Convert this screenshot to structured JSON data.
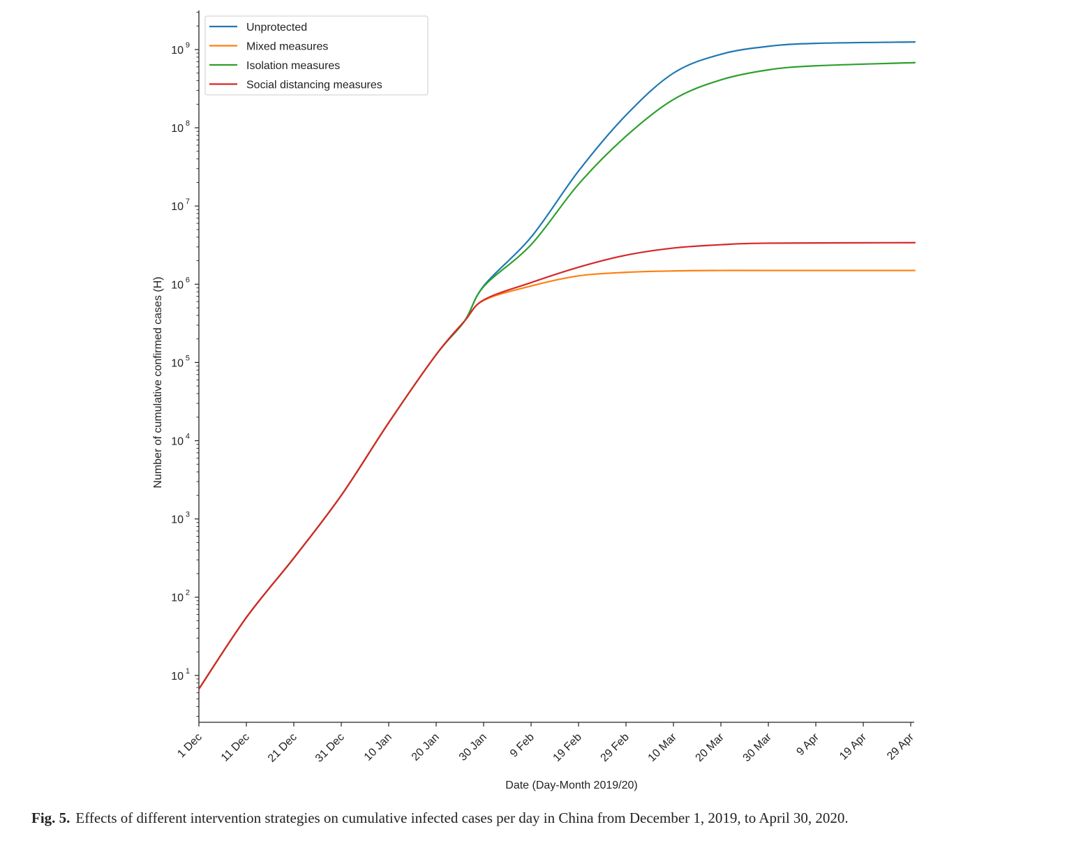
{
  "chart_data": {
    "type": "line",
    "title": "",
    "xlabel": "Date (Day-Month 2019/20)",
    "ylabel": "Number of cumulative confirmed cases (H)",
    "yscale": "log",
    "ylim": [
      2.5,
      3200000000.0
    ],
    "xlim": [
      "2019-12-01",
      "2020-04-30"
    ],
    "x_ticks": [
      "1 Dec",
      "11 Dec",
      "21 Dec",
      "31 Dec",
      "10 Jan",
      "20 Jan",
      "30 Jan",
      "9 Feb",
      "19 Feb",
      "29 Feb",
      "10 Mar",
      "20 Mar",
      "30 Mar",
      "9 Apr",
      "19 Apr",
      "29 Apr"
    ],
    "x_tick_dates": [
      "2019-12-01",
      "2019-12-11",
      "2019-12-21",
      "2019-12-31",
      "2020-01-10",
      "2020-01-20",
      "2020-01-30",
      "2020-02-09",
      "2020-02-19",
      "2020-02-29",
      "2020-03-10",
      "2020-03-20",
      "2020-03-30",
      "2020-04-09",
      "2020-04-19",
      "2020-04-29"
    ],
    "y_ticks": [
      {
        "base": "10",
        "exp": "1",
        "value": 10
      },
      {
        "base": "10",
        "exp": "2",
        "value": 100
      },
      {
        "base": "10",
        "exp": "3",
        "value": 1000
      },
      {
        "base": "10",
        "exp": "4",
        "value": 10000
      },
      {
        "base": "10",
        "exp": "5",
        "value": 100000
      },
      {
        "base": "10",
        "exp": "6",
        "value": 1000000
      },
      {
        "base": "10",
        "exp": "7",
        "value": 10000000
      },
      {
        "base": "10",
        "exp": "8",
        "value": 100000000
      },
      {
        "base": "10",
        "exp": "9",
        "value": 1000000000
      }
    ],
    "grid": false,
    "legend": "top-left",
    "series": [
      {
        "name": "Unprotected",
        "color": "#1f77b4",
        "x": [
          "2019-12-01",
          "2019-12-11",
          "2019-12-21",
          "2019-12-31",
          "2020-01-10",
          "2020-01-20",
          "2020-01-26",
          "2020-01-30",
          "2020-02-09",
          "2020-02-19",
          "2020-02-29",
          "2020-03-10",
          "2020-03-20",
          "2020-03-30",
          "2020-04-09",
          "2020-04-30"
        ],
        "y": [
          6.7,
          55,
          316,
          2000,
          17000,
          126000,
          340000,
          950000,
          4000000,
          28000000,
          145000000,
          500000000,
          870000000,
          1100000000,
          1200000000,
          1250000000
        ]
      },
      {
        "name": "Mixed measures",
        "color": "#ff7f0e",
        "x": [
          "2019-12-01",
          "2019-12-11",
          "2019-12-21",
          "2019-12-31",
          "2020-01-10",
          "2020-01-20",
          "2020-01-26",
          "2020-01-30",
          "2020-02-09",
          "2020-02-19",
          "2020-02-29",
          "2020-03-10",
          "2020-03-20",
          "2020-03-30",
          "2020-04-30"
        ],
        "y": [
          6.7,
          55,
          316,
          2000,
          17000,
          126000,
          340000,
          620000,
          950000,
          1280000,
          1420000,
          1480000,
          1500000,
          1500000,
          1500000
        ]
      },
      {
        "name": "Isolation measures",
        "color": "#2ca02c",
        "x": [
          "2019-12-01",
          "2019-12-11",
          "2019-12-21",
          "2019-12-31",
          "2020-01-10",
          "2020-01-20",
          "2020-01-26",
          "2020-01-30",
          "2020-02-09",
          "2020-02-19",
          "2020-02-29",
          "2020-03-10",
          "2020-03-20",
          "2020-03-30",
          "2020-04-09",
          "2020-04-30"
        ],
        "y": [
          6.7,
          55,
          316,
          2000,
          17000,
          126000,
          340000,
          930000,
          3200000,
          19000000,
          78000000,
          230000000,
          410000000,
          550000000,
          620000000,
          680000000
        ]
      },
      {
        "name": "Social distancing measures",
        "color": "#d62728",
        "x": [
          "2019-12-01",
          "2019-12-11",
          "2019-12-21",
          "2019-12-31",
          "2020-01-10",
          "2020-01-20",
          "2020-01-26",
          "2020-01-30",
          "2020-02-09",
          "2020-02-19",
          "2020-02-29",
          "2020-03-10",
          "2020-03-20",
          "2020-03-30",
          "2020-04-30"
        ],
        "y": [
          6.7,
          55,
          316,
          2000,
          17000,
          126000,
          340000,
          630000,
          1050000,
          1650000,
          2350000,
          2900000,
          3200000,
          3350000,
          3400000
        ]
      }
    ]
  },
  "caption": {
    "label": "Fig. 5.",
    "text": "Effects of different intervention strategies on cumulative infected cases per day in China from December 1, 2019, to April 30, 2020."
  }
}
